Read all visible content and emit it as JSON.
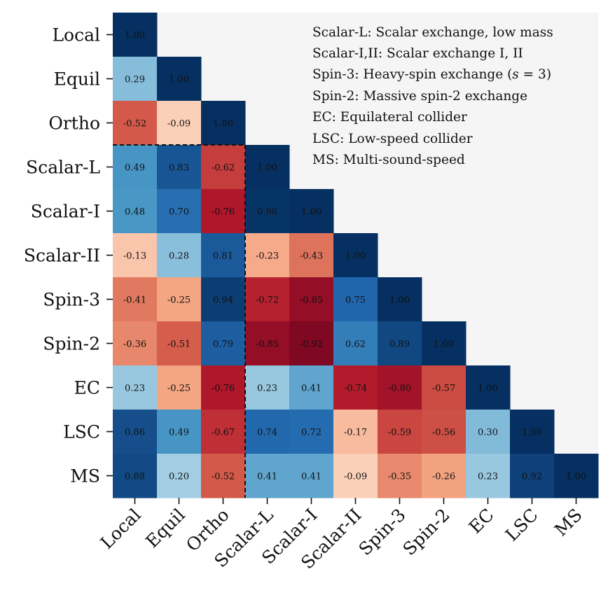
{
  "chart_data": {
    "type": "heatmap",
    "labels": [
      "Local",
      "Equil",
      "Ortho",
      "Scalar-L",
      "Scalar-I",
      "Scalar-II",
      "Spin-3",
      "Spin-2",
      "EC",
      "LSC",
      "MS"
    ],
    "lower_triangle_values": [
      [
        "1.00"
      ],
      [
        "0.29",
        "1.00"
      ],
      [
        "-0.52",
        "-0.09",
        "1.00"
      ],
      [
        "0.49",
        "0.83",
        "-0.62",
        "1.00"
      ],
      [
        "0.48",
        "0.70",
        "-0.76",
        "0.98",
        "1.00"
      ],
      [
        "-0.13",
        "0.28",
        "0.81",
        "-0.23",
        "-0.43",
        "1.00"
      ],
      [
        "-0.41",
        "-0.25",
        "0.94",
        "-0.72",
        "-0.85",
        "0.75",
        "1.00"
      ],
      [
        "-0.36",
        "-0.51",
        "0.79",
        "-0.85",
        "-0.92",
        "0.62",
        "0.89",
        "1.00"
      ],
      [
        "0.23",
        "-0.25",
        "-0.76",
        "0.23",
        "0.41",
        "-0.74",
        "-0.80",
        "-0.57",
        "1.00"
      ],
      [
        "0.86",
        "0.49",
        "-0.67",
        "0.74",
        "0.72",
        "-0.17",
        "-0.59",
        "-0.56",
        "0.30",
        "1.00"
      ],
      [
        "0.88",
        "0.20",
        "-0.52",
        "0.41",
        "0.41",
        "-0.09",
        "-0.35",
        "-0.26",
        "0.23",
        "0.92",
        "1.00"
      ]
    ],
    "color_scale": {
      "range": [
        -1,
        1
      ],
      "negative_color": "#67001f",
      "neutral_color": "#f7f7f7",
      "positive_color": "#053061"
    },
    "annotations": [
      "Scalar-L: Scalar exchange, low mass",
      "Scalar-I,II: Scalar exchange I, II",
      "Spin-3: Heavy-spin exchange (s = 3)",
      "Spin-2: Massive spin-2 exchange",
      "EC: Equilateral collider",
      "LSC: Low-speed collider",
      "MS: Multi-sound-speed"
    ],
    "background_color": "#f5f5f5",
    "divider_after_index": 2,
    "divider_style": "dashed"
  }
}
